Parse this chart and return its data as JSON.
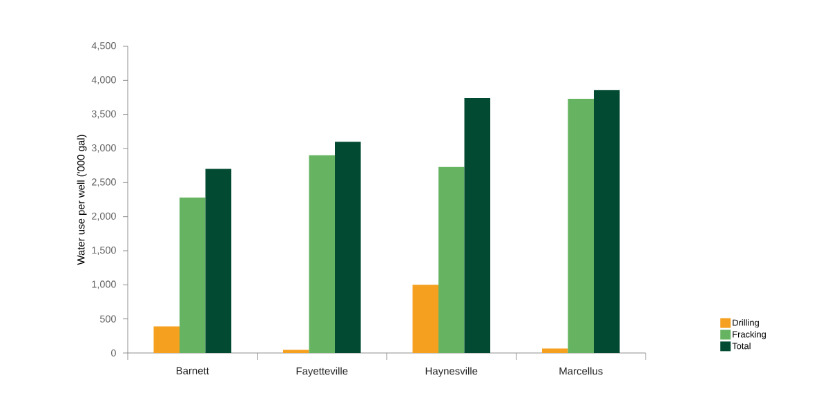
{
  "chart_data": {
    "type": "bar",
    "ylabel": "Water use per well ('000 gal)",
    "categories": [
      "Barnett",
      "Fayetteville",
      "Haynesville",
      "Marcellus"
    ],
    "series": [
      {
        "name": "Drilling",
        "color": "#f5a01e",
        "values": [
          390,
          45,
          1000,
          65
        ]
      },
      {
        "name": "Fracking",
        "color": "#66b462",
        "values": [
          2280,
          2900,
          2730,
          3730
        ]
      },
      {
        "name": "Total",
        "color": "#024a32",
        "values": [
          2700,
          3100,
          3740,
          3860
        ]
      }
    ],
    "ylim": [
      0,
      4500
    ],
    "yticks": [
      0,
      500,
      {
        "value": 1000,
        "label": "1,000"
      },
      {
        "value": 1500,
        "label": "1,500"
      },
      {
        "value": 2000,
        "label": "2,000"
      },
      {
        "value": 2500,
        "label": "2,500"
      },
      {
        "value": 3000,
        "label": "3,000"
      },
      {
        "value": 3500,
        "label": "3,500"
      },
      {
        "value": 4000,
        "label": "4,000"
      },
      {
        "value": 4500,
        "label": "4,500"
      }
    ],
    "grid": false,
    "legend": "bottom right"
  }
}
